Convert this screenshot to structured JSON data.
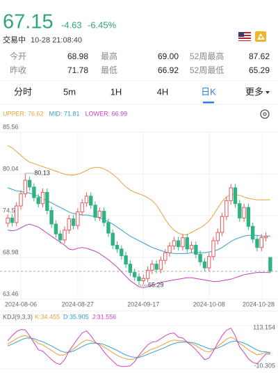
{
  "header": {
    "price": "67.15",
    "change": "-4.63",
    "change_pct": "-6.45%",
    "status": "交易中",
    "time": "10-28 21:08:40"
  },
  "stats": [
    [
      {
        "label": "今开",
        "value": "68.98"
      },
      {
        "label": "最高",
        "value": "69.00"
      },
      {
        "label": "52周最高",
        "value": "87.62"
      }
    ],
    [
      {
        "label": "昨收",
        "value": "71.78"
      },
      {
        "label": "最低",
        "value": "66.92"
      },
      {
        "label": "52周最低",
        "value": "65.29"
      }
    ]
  ],
  "tabs": [
    {
      "label": "分时"
    },
    {
      "label": "5m"
    },
    {
      "label": "1H"
    },
    {
      "label": "4H"
    },
    {
      "label": "日K",
      "selected": true
    },
    {
      "label": "更多"
    }
  ],
  "chart_data": [
    {
      "type": "candlestick",
      "categories": [
        null,
        null,
        null,
        "2024-08-06",
        null,
        null,
        null,
        null,
        null,
        null,
        null,
        null,
        null,
        null,
        null,
        null,
        "2024-08-27",
        null,
        null,
        null,
        null,
        null,
        null,
        null,
        null,
        null,
        null,
        null,
        null,
        null,
        null,
        "2024-09-17",
        null,
        null,
        null,
        null,
        null,
        null,
        null,
        null,
        null,
        null,
        null,
        null,
        null,
        null,
        "2024-10-08",
        null,
        null,
        null,
        null,
        null,
        null,
        null,
        null,
        null,
        null,
        null,
        "2024-10-28",
        null,
        null
      ],
      "open": [
        73.5,
        74.2,
        73.6,
        75.8,
        77.4,
        79.2,
        78.3,
        76.9,
        76.1,
        77.6,
        75.2,
        73.4,
        72.1,
        71.3,
        72.6,
        74.1,
        73.2,
        75.0,
        76.2,
        77.1,
        75.9,
        74.3,
        75.1,
        73.6,
        72.2,
        70.6,
        70.1,
        69.2,
        68.1,
        67.0,
        66.4,
        65.9,
        66.2,
        67.3,
        68.1,
        67.4,
        68.6,
        69.6,
        70.5,
        71.2,
        70.4,
        71.6,
        70.1,
        70.6,
        69.4,
        68.4,
        67.6,
        69.1,
        71.2,
        72.3,
        74.4,
        76.5,
        78.2,
        76.1,
        74.2,
        75.6,
        73.1,
        71.4,
        70.3,
        71.6,
        68.98
      ],
      "high": [
        74.7,
        74.7,
        76.3,
        77.9,
        80.13,
        79.7,
        78.8,
        77.4,
        78.1,
        78.1,
        75.7,
        73.9,
        72.6,
        73.1,
        74.6,
        74.6,
        75.5,
        76.7,
        77.6,
        77.6,
        76.4,
        75.6,
        75.6,
        74.1,
        72.7,
        71.1,
        70.6,
        69.7,
        68.6,
        67.5,
        66.9,
        66.7,
        67.8,
        68.6,
        68.6,
        69.1,
        70.1,
        71.0,
        71.7,
        71.7,
        72.1,
        72.1,
        71.1,
        71.1,
        69.9,
        68.9,
        69.6,
        71.7,
        72.8,
        74.9,
        77.0,
        78.7,
        78.7,
        76.6,
        76.1,
        76.1,
        73.6,
        71.9,
        72.1,
        72.3,
        69.0
      ],
      "low": [
        73.0,
        73.1,
        73.1,
        75.3,
        76.9,
        77.8,
        76.4,
        75.6,
        75.6,
        74.7,
        72.9,
        71.6,
        70.8,
        70.8,
        72.1,
        72.7,
        72.7,
        74.5,
        75.7,
        75.4,
        73.8,
        73.8,
        73.1,
        71.7,
        70.1,
        69.6,
        68.7,
        67.6,
        66.5,
        65.9,
        65.29,
        65.4,
        65.7,
        66.8,
        66.9,
        66.9,
        68.1,
        69.1,
        70.0,
        69.9,
        69.9,
        69.6,
        69.6,
        68.9,
        67.9,
        67.1,
        67.1,
        68.6,
        70.7,
        71.8,
        73.9,
        76.0,
        75.6,
        73.7,
        73.7,
        72.6,
        70.9,
        69.8,
        69.8,
        71.1,
        66.92
      ],
      "close": [
        74.2,
        73.6,
        75.8,
        77.4,
        79.2,
        78.3,
        76.9,
        76.1,
        77.6,
        75.2,
        73.4,
        72.1,
        71.3,
        72.6,
        74.1,
        73.2,
        75.0,
        76.2,
        77.1,
        75.9,
        74.3,
        75.1,
        73.6,
        72.2,
        70.6,
        70.1,
        69.2,
        68.1,
        67.0,
        66.4,
        65.9,
        66.2,
        67.3,
        68.1,
        67.4,
        68.6,
        69.6,
        70.5,
        71.2,
        70.4,
        71.6,
        70.1,
        70.6,
        69.4,
        68.4,
        67.6,
        69.1,
        71.2,
        72.3,
        74.4,
        76.5,
        78.2,
        76.1,
        74.2,
        75.6,
        73.1,
        71.4,
        70.3,
        71.6,
        71.78,
        67.15
      ],
      "up_color": "#e8575a",
      "down_color": "#2fb380",
      "series": [
        {
          "name": "UPPER: 76.62",
          "color": "#e6a23c",
          "values": [
            83.8,
            83.5,
            83.0,
            82.5,
            82.0,
            81.6,
            81.4,
            81.2,
            81.0,
            80.8,
            80.6,
            80.4,
            80.2,
            80.0,
            79.9,
            79.9,
            80.0,
            80.2,
            80.5,
            80.8,
            80.9,
            80.9,
            80.7,
            80.4,
            80.0,
            79.5,
            78.9,
            78.3,
            77.9,
            77.6,
            77.4,
            77.2,
            76.9,
            76.5,
            75.9,
            75.0,
            74.0,
            73.2,
            72.6,
            72.2,
            72.0,
            72.0,
            72.3,
            72.6,
            72.9,
            73.3,
            73.8,
            74.6,
            75.5,
            76.4,
            77.0,
            77.3,
            77.3,
            77.2,
            77.0,
            76.8,
            76.7,
            76.6,
            76.6,
            76.6,
            76.62
          ]
        },
        {
          "name": "MID: 71.81",
          "color": "#2f9fd0",
          "values": [
            78.2,
            78.0,
            77.8,
            77.7,
            77.6,
            77.5,
            77.3,
            77.1,
            76.8,
            76.5,
            76.2,
            75.9,
            75.6,
            75.3,
            75.0,
            74.8,
            74.7,
            74.6,
            74.6,
            74.5,
            74.4,
            74.2,
            74.0,
            73.7,
            73.4,
            73.0,
            72.6,
            72.2,
            71.8,
            71.5,
            71.2,
            70.9,
            70.6,
            70.3,
            70.1,
            69.9,
            69.7,
            69.6,
            69.5,
            69.5,
            69.5,
            69.5,
            69.6,
            69.6,
            69.6,
            69.6,
            69.7,
            69.8,
            70.0,
            70.3,
            70.7,
            71.1,
            71.4,
            71.6,
            71.8,
            71.9,
            71.9,
            71.9,
            71.8,
            71.8,
            71.81
          ]
        },
        {
          "name": "LOWER: 66.99",
          "color": "#c040b8",
          "values": [
            72.6,
            72.5,
            72.6,
            72.9,
            73.2,
            73.4,
            73.2,
            73.0,
            72.6,
            72.2,
            71.8,
            71.4,
            71.0,
            70.6,
            70.1,
            70.0,
            70.2,
            70.3,
            70.2,
            70.0,
            69.8,
            69.5,
            69.1,
            68.7,
            68.2,
            67.7,
            67.1,
            66.5,
            65.9,
            65.5,
            65.1,
            65.0,
            65.1,
            65.3,
            65.5,
            65.7,
            65.8,
            65.9,
            66.0,
            66.1,
            66.2,
            66.3,
            66.3,
            66.2,
            66.1,
            66.0,
            65.9,
            65.8,
            65.8,
            65.9,
            66.0,
            66.1,
            66.3,
            66.5,
            66.7,
            66.8,
            66.9,
            67.0,
            67.0,
            67.0,
            66.99
          ]
        }
      ],
      "ylim": [
        63.46,
        85.56
      ],
      "yticks": [
        85.56,
        80.04,
        74.51,
        68.98,
        63.46
      ],
      "grid": true,
      "annotations": [
        {
          "text": "80.13"
        },
        {
          "text": "65.29"
        }
      ]
    },
    {
      "type": "line",
      "title": "KDJ(9,3,3)",
      "series": [
        {
          "name": "K:34.455",
          "color": "#e6a23c",
          "values": [
            60,
            68,
            76,
            82,
            85,
            80,
            72,
            62,
            58,
            50,
            42,
            34,
            28,
            30,
            38,
            46,
            56,
            66,
            72,
            70,
            64,
            60,
            52,
            44,
            36,
            28,
            22,
            18,
            16,
            18,
            24,
            32,
            40,
            46,
            50,
            56,
            62,
            68,
            72,
            70,
            70,
            66,
            62,
            56,
            48,
            40,
            38,
            44,
            54,
            64,
            74,
            80,
            74,
            62,
            54,
            44,
            36,
            30,
            32,
            36,
            34.455
          ]
        },
        {
          "name": "D:35.905",
          "color": "#2f9fd0",
          "values": [
            55,
            60,
            66,
            72,
            77,
            78,
            76,
            71,
            67,
            61,
            55,
            48,
            41,
            37,
            37,
            40,
            46,
            53,
            59,
            63,
            63,
            62,
            59,
            54,
            48,
            42,
            35,
            29,
            25,
            22,
            22,
            26,
            31,
            36,
            41,
            46,
            51,
            57,
            62,
            65,
            66,
            66,
            65,
            62,
            57,
            52,
            47,
            46,
            49,
            54,
            61,
            67,
            69,
            67,
            63,
            57,
            50,
            43,
            39,
            38,
            35.905
          ]
        },
        {
          "name": "J:31.556",
          "color": "#d040c0",
          "values": [
            70,
            84,
            96,
            102,
            101,
            84,
            64,
            44,
            40,
            28,
            16,
            6,
            2,
            16,
            40,
            58,
            76,
            92,
            98,
            84,
            66,
            56,
            38,
            24,
            12,
            0,
            -4,
            -4,
            -2,
            10,
            28,
            44,
            58,
            66,
            68,
            76,
            84,
            90,
            92,
            80,
            78,
            66,
            56,
            44,
            30,
            16,
            20,
            40,
            64,
            84,
            100,
            106,
            84,
            52,
            36,
            18,
            8,
            4,
            18,
            32,
            31.556
          ]
        }
      ],
      "ylim": [
        -10.305,
        113.154
      ],
      "yticks": [
        113.154,
        -10.305
      ]
    }
  ]
}
